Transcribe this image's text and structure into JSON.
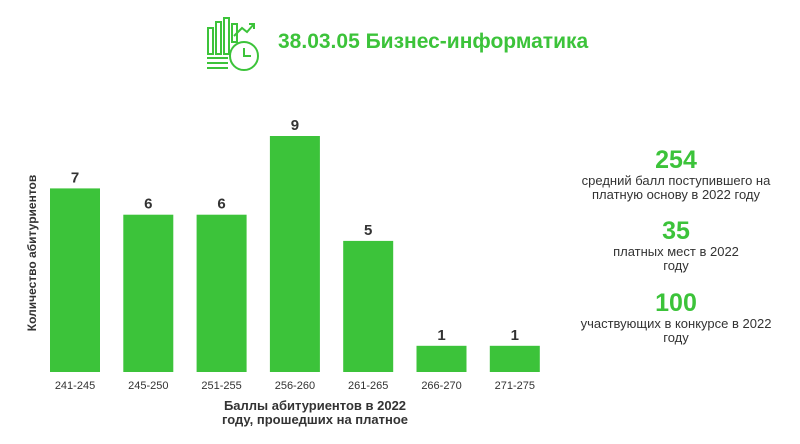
{
  "header": {
    "title": "38.03.05 Бизнес-информатика",
    "icon": "chart-growth-clock-icon"
  },
  "colors": {
    "accent": "#3cc33a",
    "text": "#333333"
  },
  "chart_data": {
    "type": "bar",
    "categories": [
      "241-245",
      "245-250",
      "251-255",
      "256-260",
      "261-265",
      "266-270",
      "271-275"
    ],
    "values": [
      7,
      6,
      6,
      9,
      5,
      1,
      1
    ],
    "data_labels": [
      "7",
      "6",
      "6",
      "9",
      "5",
      "1",
      "1"
    ],
    "title": "",
    "xlabel_lines": [
      "Баллы абитуриентов в 2022",
      "году, прошедших на платное"
    ],
    "ylabel": "Количество абитуриентов",
    "ylim": [
      0,
      9
    ],
    "grid": false,
    "bar_color": "#3cc33a"
  },
  "stats": [
    {
      "value": "254",
      "lines": [
        "средний балл поступившего на",
        "платную основу в 2022 году"
      ]
    },
    {
      "value": "35",
      "lines": [
        "платных мест в 2022",
        "году"
      ]
    },
    {
      "value": "100",
      "lines": [
        "участвующих в конкурсе в 2022",
        "году"
      ]
    }
  ]
}
